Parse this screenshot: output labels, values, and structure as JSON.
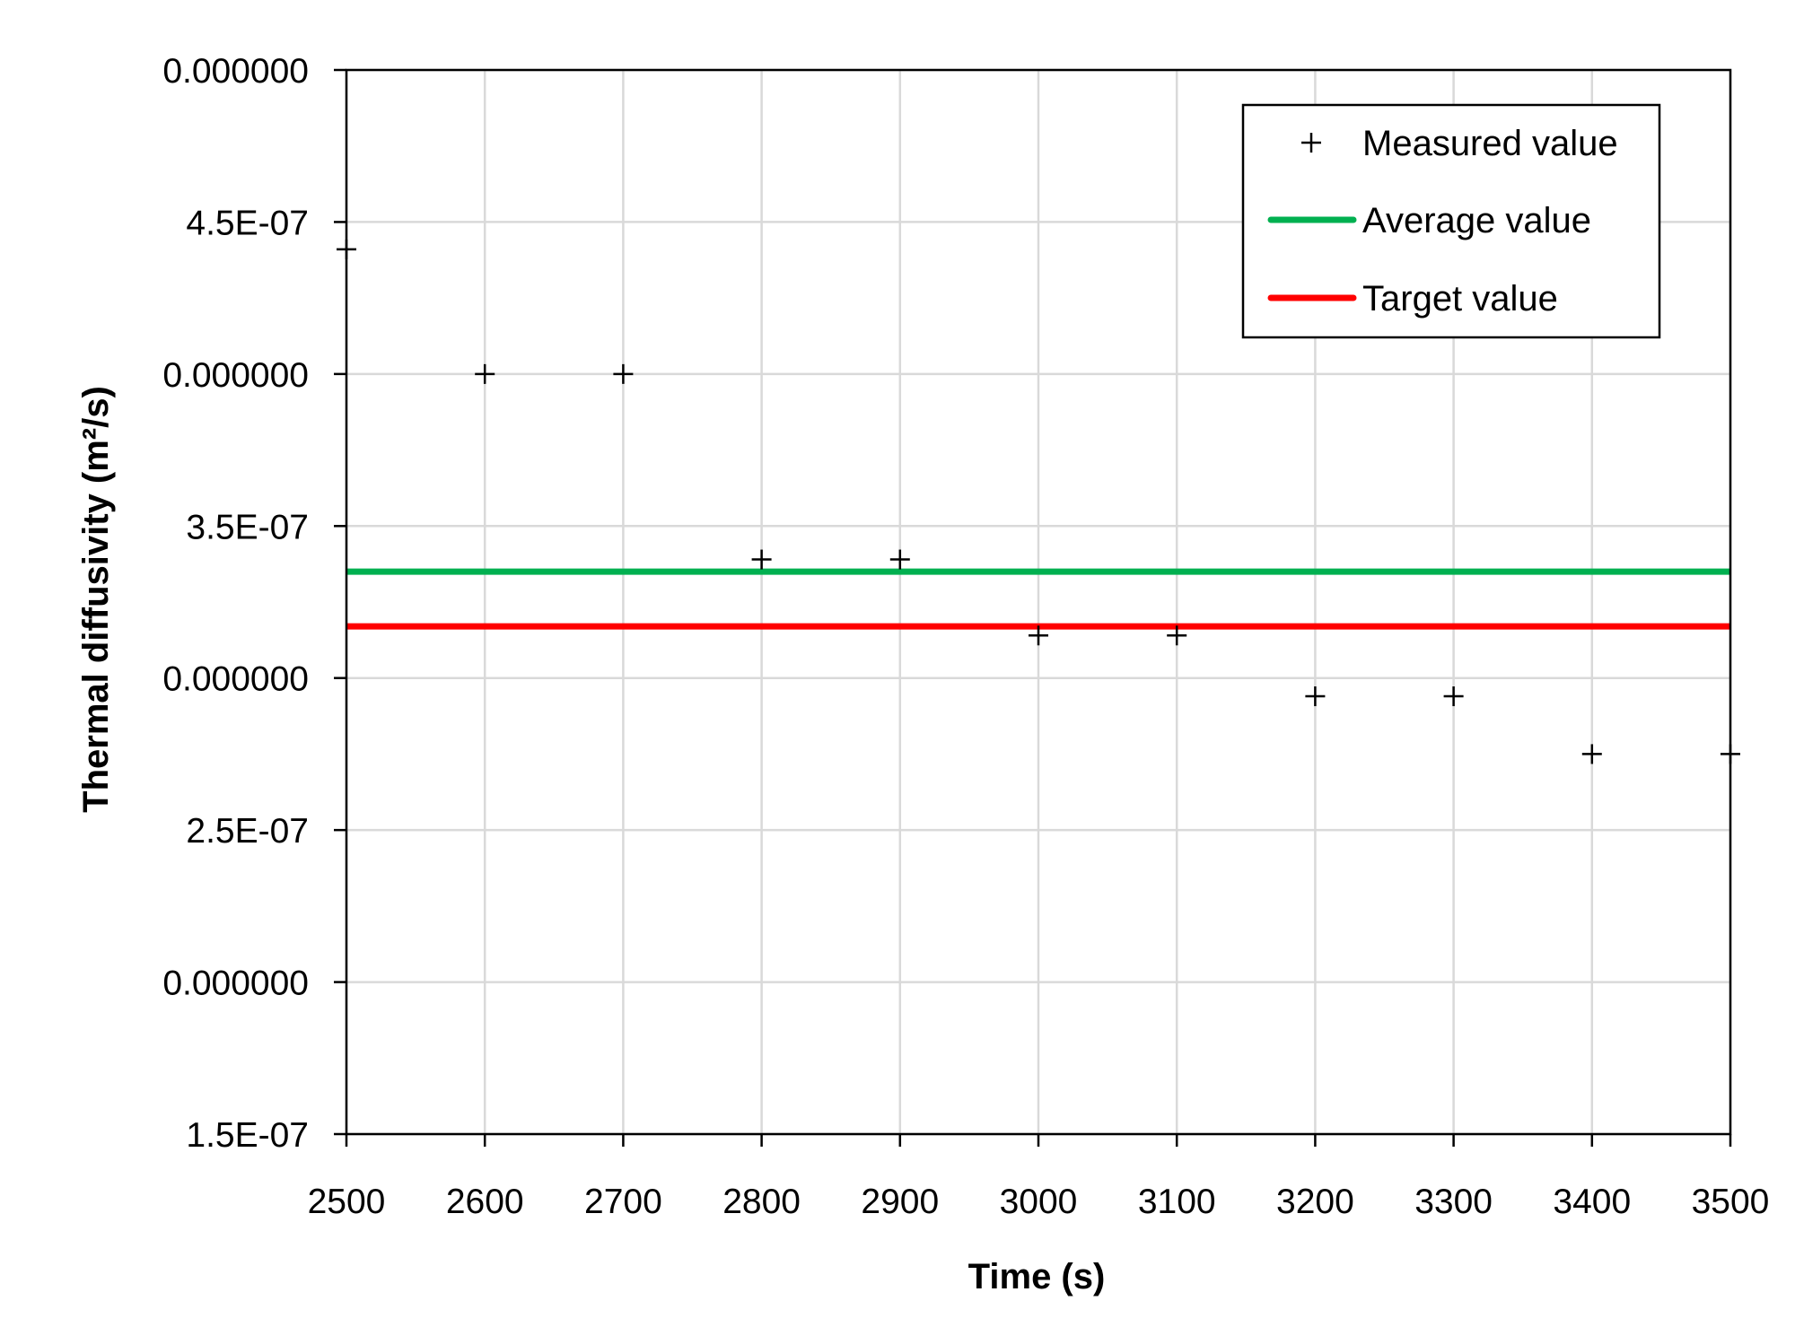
{
  "chart_data": {
    "type": "scatter",
    "title": "",
    "xlabel": "Time (s)",
    "ylabel": "Thermal diffusivity (m²/s)",
    "xlim": [
      2500,
      3500
    ],
    "ylim": [
      1.5e-07,
      5e-07
    ],
    "x_ticks": [
      2500,
      2600,
      2700,
      2800,
      2900,
      3000,
      3100,
      3200,
      3300,
      3400,
      3500
    ],
    "x_tick_labels": [
      "2500",
      "2600",
      "2700",
      "2800",
      "2900",
      "3000",
      "3100",
      "3200",
      "3300",
      "3400",
      "3500"
    ],
    "y_ticks": [
      5e-07,
      4.5e-07,
      4e-07,
      3.5e-07,
      3e-07,
      2.5e-07,
      2e-07,
      1.5e-07
    ],
    "y_tick_labels": [
      "0.000000",
      "4.5E-07",
      "0.000000",
      "3.5E-07",
      "0.000000",
      "2.5E-07",
      "0.000000",
      "1.5E-07"
    ],
    "grid": true,
    "legend_position": "top-right",
    "series": [
      {
        "name": "Measured value",
        "type": "scatter",
        "marker": "plus",
        "color": "#000000",
        "x": [
          2500,
          2600,
          2700,
          2800,
          2900,
          3000,
          3100,
          3200,
          3300,
          3400,
          3500
        ],
        "y": [
          4.41e-07,
          4e-07,
          4e-07,
          3.39e-07,
          3.39e-07,
          3.14e-07,
          3.14e-07,
          2.94e-07,
          2.94e-07,
          2.75e-07,
          2.75e-07
        ]
      },
      {
        "name": "Average value",
        "type": "hline",
        "color": "#00b050",
        "y": 3.35e-07
      },
      {
        "name": "Target value",
        "type": "hline",
        "color": "#ff0000",
        "y": 3.17e-07
      }
    ]
  }
}
